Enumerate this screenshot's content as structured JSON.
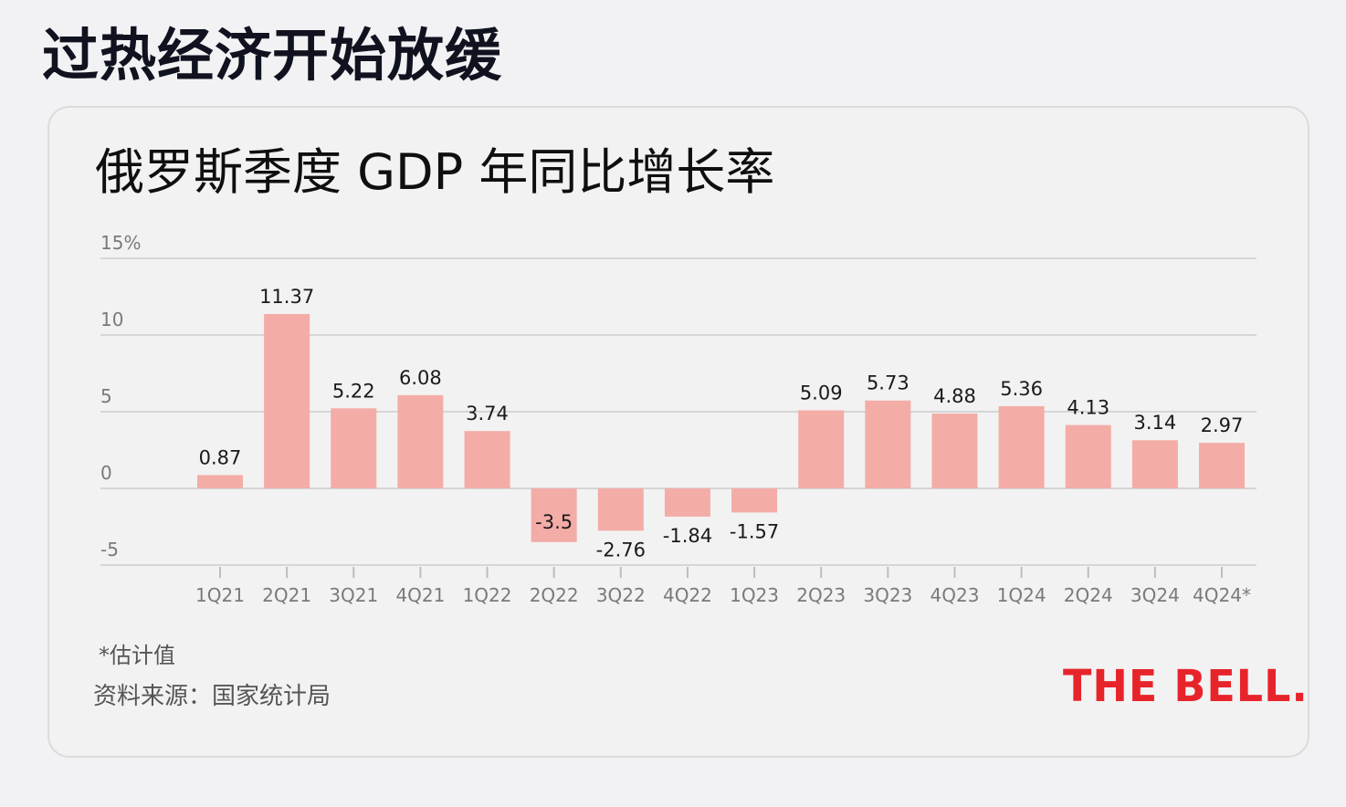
{
  "page": {
    "title": "过热经济开始放缓"
  },
  "card": {
    "chart_title": "俄罗斯季度 GDP 年同比增长率",
    "note": "*估计值",
    "source": "资料来源：国家统计局",
    "brand": "THE BELL."
  },
  "colors": {
    "bar": "#f4aca7",
    "brand": "#e8242b",
    "grid": "#d6d6d6",
    "axis_text": "#7a7a7a",
    "label_text": "#1a1a1a"
  },
  "chart_data": {
    "type": "bar",
    "title": "俄罗斯季度 GDP 年同比增长率",
    "xlabel": "",
    "ylabel": "",
    "ylim": [
      -5,
      15
    ],
    "yticks": [
      -5,
      0,
      5,
      10,
      15
    ],
    "ytick_labels": [
      "-5",
      "0",
      "5",
      "10",
      "15%"
    ],
    "grid": true,
    "categories": [
      "1Q21",
      "2Q21",
      "3Q21",
      "4Q21",
      "1Q22",
      "2Q22",
      "3Q22",
      "4Q22",
      "1Q23",
      "2Q23",
      "3Q23",
      "4Q23",
      "1Q24",
      "2Q24",
      "3Q24",
      "4Q24*"
    ],
    "values": [
      0.87,
      11.37,
      5.22,
      6.08,
      3.74,
      -3.5,
      -2.76,
      -1.84,
      -1.57,
      5.09,
      5.73,
      4.88,
      5.36,
      4.13,
      3.14,
      2.97
    ],
    "value_labels": [
      "0.87",
      "11.37",
      "5.22",
      "6.08",
      "3.74",
      "-3.5",
      "-2.76",
      "-1.84",
      "-1.57",
      "5.09",
      "5.73",
      "4.88",
      "5.36",
      "4.13",
      "3.14",
      "2.97"
    ]
  }
}
